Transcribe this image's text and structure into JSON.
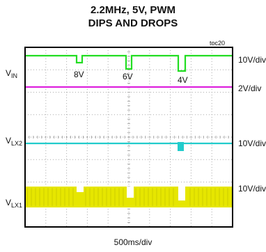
{
  "chart_data": {
    "type": "line",
    "title": "2.2MHz, 5V, PWM",
    "subtitle": "DIPS AND DROPS",
    "figure_id": "toc20",
    "xlabel": "500ms/div",
    "grid": true,
    "x_divisions": 10,
    "y_divisions": 8,
    "colors": {
      "vin": "#22dd22",
      "v2": "#dd22dd",
      "vlx2": "#22cccc",
      "vlx1": "#e6e600",
      "grid": "#aaaaaa",
      "frame": "#000000"
    },
    "channels": [
      {
        "label": "V",
        "sub": "IN",
        "scale": "10V/div"
      },
      {
        "label": "",
        "sub": "",
        "scale": "2V/div"
      },
      {
        "label": "V",
        "sub": "LX2",
        "scale": "10V/div"
      },
      {
        "label": "V",
        "sub": "LX1",
        "scale": "10V/div"
      }
    ],
    "annotations": [
      "8V",
      "6V",
      "4V"
    ]
  }
}
